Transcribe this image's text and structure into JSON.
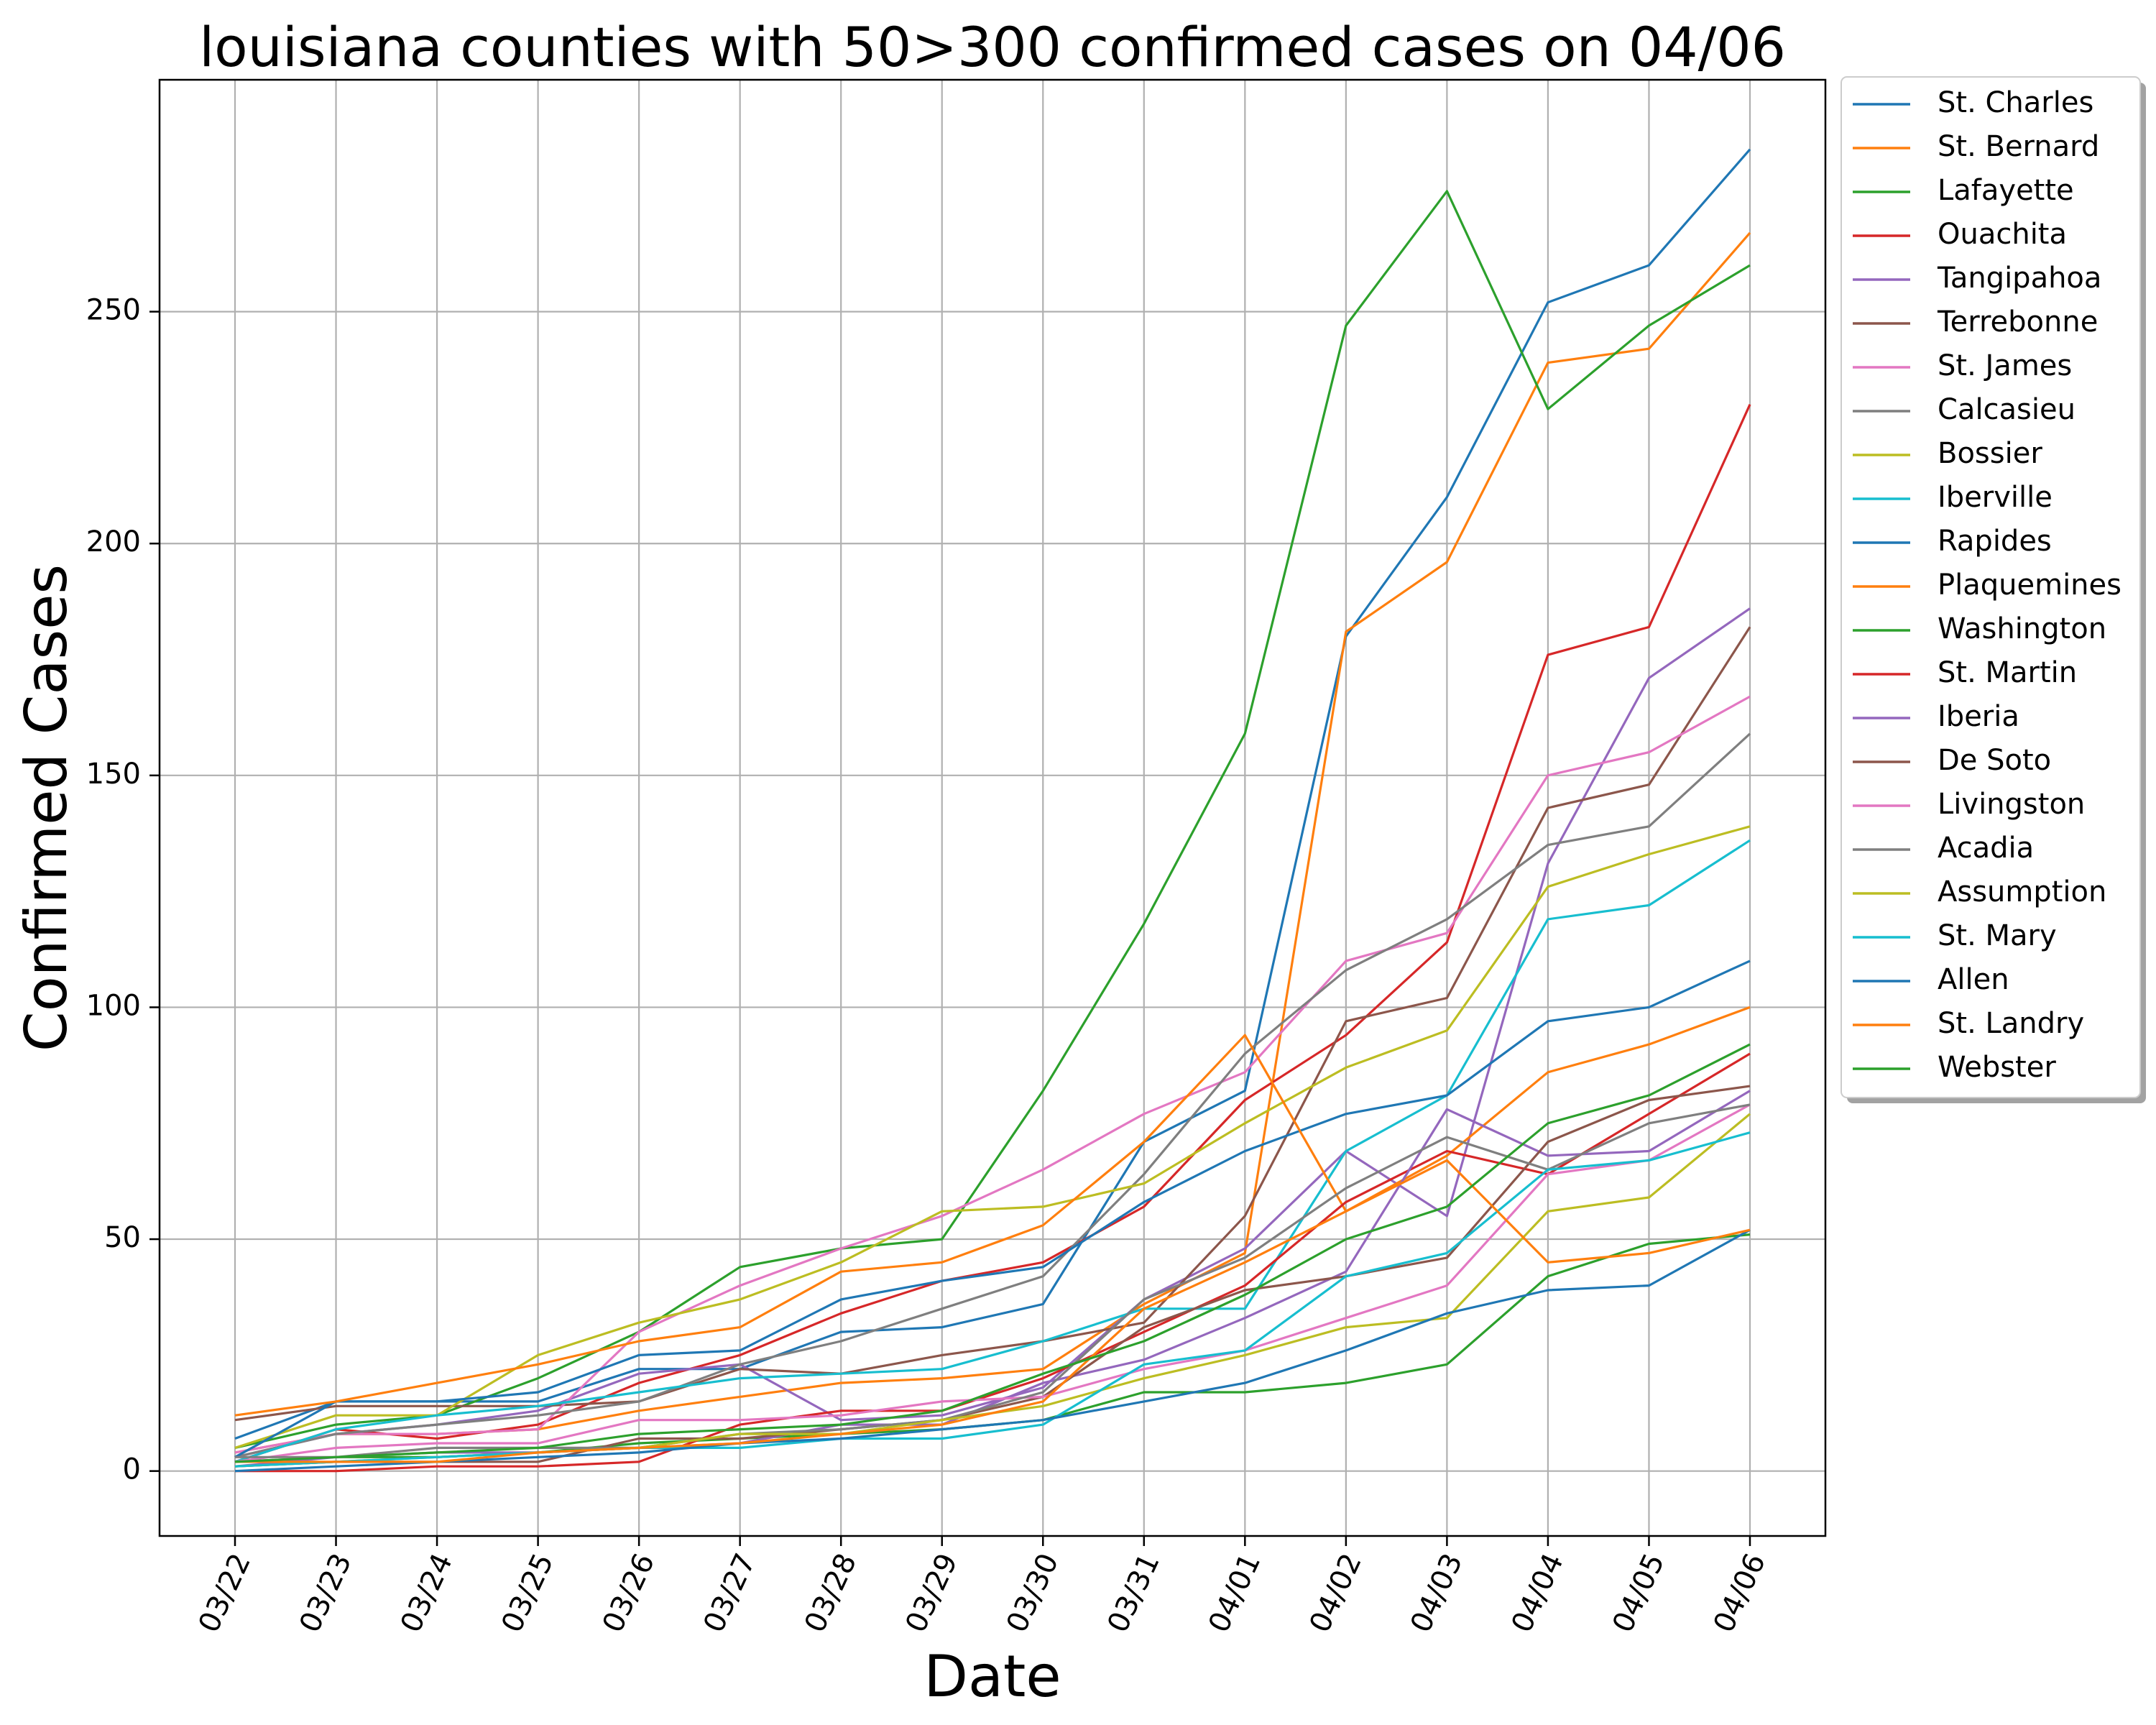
{
  "chart_data": {
    "type": "line",
    "title": "louisiana counties with 50>300 confirmed cases on 04/06",
    "xlabel": "Date",
    "ylabel": "Confirmed Cases",
    "x": [
      "03/22",
      "03/23",
      "03/24",
      "03/25",
      "03/26",
      "03/27",
      "03/28",
      "03/29",
      "03/30",
      "03/31",
      "04/01",
      "04/02",
      "04/03",
      "04/04",
      "04/05",
      "04/06"
    ],
    "ylim": [
      -14,
      300
    ],
    "yticks": [
      0,
      50,
      100,
      150,
      200,
      250
    ],
    "grid": true,
    "legend_placement": "outside-right",
    "series": [
      {
        "name": "St. Charles",
        "color": "#1f77b4",
        "values": [
          7,
          15,
          15,
          15,
          22,
          22,
          30,
          31,
          36,
          71,
          82,
          180,
          210,
          252,
          260,
          285
        ]
      },
      {
        "name": "St. Bernard",
        "color": "#ff7f0e",
        "values": [
          4,
          8,
          8,
          9,
          13,
          16,
          19,
          20,
          22,
          36,
          47,
          181,
          196,
          239,
          242,
          267
        ]
      },
      {
        "name": "Lafayette",
        "color": "#2ca02c",
        "values": [
          5,
          10,
          12,
          20,
          30,
          44,
          48,
          50,
          82,
          118,
          159,
          247,
          276,
          229,
          247,
          260
        ]
      },
      {
        "name": "Ouachita",
        "color": "#d62728",
        "values": [
          2,
          9,
          7,
          10,
          19,
          25,
          34,
          41,
          45,
          57,
          80,
          94,
          114,
          176,
          182,
          230
        ]
      },
      {
        "name": "Tangipahoa",
        "color": "#9467bd",
        "values": [
          3,
          8,
          10,
          13,
          21,
          23,
          11,
          12,
          18,
          37,
          48,
          69,
          55,
          131,
          171,
          186
        ]
      },
      {
        "name": "Terrebonne",
        "color": "#8c564b",
        "values": [
          11,
          14,
          14,
          14,
          15,
          22,
          21,
          25,
          28,
          32,
          55,
          97,
          102,
          143,
          148,
          182
        ]
      },
      {
        "name": "St. James",
        "color": "#e377c2",
        "values": [
          4,
          8,
          8,
          9,
          30,
          40,
          48,
          55,
          65,
          77,
          86,
          110,
          116,
          150,
          155,
          167
        ]
      },
      {
        "name": "Calcasieu",
        "color": "#7f7f7f",
        "values": [
          3,
          8,
          10,
          12,
          15,
          23,
          28,
          35,
          42,
          64,
          90,
          108,
          119,
          135,
          139,
          159
        ]
      },
      {
        "name": "Bossier",
        "color": "#bcbd22",
        "values": [
          5,
          12,
          12,
          25,
          32,
          37,
          45,
          56,
          57,
          62,
          75,
          87,
          95,
          126,
          133,
          139
        ]
      },
      {
        "name": "Iberville",
        "color": "#17becf",
        "values": [
          2,
          9,
          12,
          14,
          17,
          20,
          21,
          22,
          28,
          35,
          35,
          69,
          81,
          119,
          122,
          136
        ]
      },
      {
        "name": "Rapides",
        "color": "#1f77b4",
        "values": [
          3,
          15,
          15,
          17,
          25,
          26,
          37,
          41,
          44,
          58,
          69,
          77,
          81,
          97,
          100,
          110
        ]
      },
      {
        "name": "Plaquemines",
        "color": "#ff7f0e",
        "values": [
          12,
          15,
          19,
          23,
          28,
          31,
          43,
          45,
          53,
          71,
          94,
          56,
          68,
          86,
          92,
          100
        ]
      },
      {
        "name": "Washington",
        "color": "#2ca02c",
        "values": [
          2,
          3,
          3,
          4,
          6,
          7,
          8,
          9,
          11,
          17,
          17,
          19,
          23,
          42,
          49,
          51
        ]
      },
      {
        "name": "St. Martin",
        "color": "#d62728",
        "values": [
          0,
          0,
          1,
          1,
          2,
          10,
          13,
          13,
          20,
          30,
          40,
          58,
          69,
          64,
          77,
          90
        ]
      },
      {
        "name": "Iberia",
        "color": "#9467bd",
        "values": [
          1,
          3,
          4,
          4,
          5,
          6,
          10,
          10,
          19,
          24,
          33,
          43,
          78,
          68,
          69,
          82
        ]
      },
      {
        "name": "De Soto",
        "color": "#8c564b",
        "values": [
          1,
          2,
          2,
          2,
          7,
          7,
          9,
          11,
          16,
          31,
          39,
          42,
          46,
          71,
          80,
          83
        ]
      },
      {
        "name": "Livingston",
        "color": "#e377c2",
        "values": [
          2,
          5,
          6,
          6,
          11,
          11,
          12,
          15,
          16,
          22,
          26,
          33,
          40,
          64,
          67,
          79
        ]
      },
      {
        "name": "Acadia",
        "color": "#7f7f7f",
        "values": [
          3,
          3,
          5,
          5,
          5,
          8,
          9,
          11,
          17,
          37,
          46,
          61,
          72,
          65,
          75,
          79
        ]
      },
      {
        "name": "Assumption",
        "color": "#bcbd22",
        "values": [
          1,
          2,
          3,
          4,
          5,
          8,
          8,
          11,
          14,
          20,
          25,
          31,
          33,
          56,
          59,
          77
        ]
      },
      {
        "name": "St. Mary",
        "color": "#17becf",
        "values": [
          1,
          2,
          3,
          4,
          5,
          5,
          7,
          7,
          10,
          23,
          26,
          42,
          47,
          65,
          67,
          73
        ]
      },
      {
        "name": "Allen",
        "color": "#1f77b4",
        "values": [
          0,
          1,
          2,
          3,
          4,
          6,
          7,
          9,
          11,
          15,
          19,
          26,
          34,
          39,
          40,
          52
        ]
      },
      {
        "name": "St. Landry",
        "color": "#ff7f0e",
        "values": [
          2,
          2,
          2,
          4,
          5,
          6,
          8,
          10,
          15,
          35,
          45,
          56,
          67,
          45,
          47,
          52
        ]
      },
      {
        "name": "Webster",
        "color": "#2ca02c",
        "values": [
          2,
          3,
          4,
          5,
          8,
          9,
          10,
          13,
          21,
          28,
          38,
          50,
          57,
          75,
          81,
          92
        ]
      }
    ]
  }
}
